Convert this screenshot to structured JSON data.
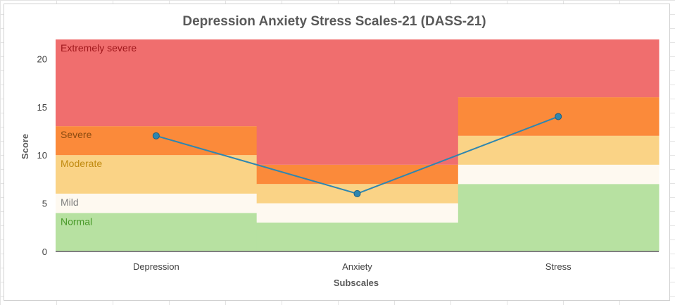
{
  "chart_data": {
    "type": "line",
    "title": "Depression Anxiety Stress Scales-21 (DASS-21)",
    "xlabel": "Subscales",
    "ylabel": "Score",
    "categories": [
      "Depression",
      "Anxiety",
      "Stress"
    ],
    "ylim": [
      0,
      22
    ],
    "yticks": [
      0,
      5,
      10,
      15,
      20
    ],
    "series": [
      {
        "values": [
          12,
          6,
          14
        ],
        "color": "#2e86b0"
      }
    ],
    "bands": [
      {
        "label": "Normal",
        "color": "#b7e1a1",
        "text_color": "#4a9a2a",
        "ranges": [
          [
            0,
            4
          ],
          [
            0,
            3
          ],
          [
            0,
            7
          ]
        ]
      },
      {
        "label": "Mild",
        "color": "#fef9f0",
        "text_color": "#7f7f7f",
        "ranges": [
          [
            4,
            6
          ],
          [
            3,
            5
          ],
          [
            7,
            9
          ]
        ]
      },
      {
        "label": "Moderate",
        "color": "#fad386",
        "text_color": "#c08a10",
        "ranges": [
          [
            6,
            10
          ],
          [
            5,
            7
          ],
          [
            9,
            12
          ]
        ]
      },
      {
        "label": "Severe",
        "color": "#fb8a3a",
        "text_color": "#8a4a10",
        "ranges": [
          [
            10,
            13
          ],
          [
            7,
            9
          ],
          [
            12,
            16
          ]
        ]
      },
      {
        "label": "Extremely severe",
        "color": "#f06e6e",
        "text_color": "#a0181c",
        "ranges": [
          [
            13,
            22
          ],
          [
            9,
            22
          ],
          [
            16,
            22
          ]
        ]
      }
    ],
    "grid": false,
    "legend": "none"
  }
}
